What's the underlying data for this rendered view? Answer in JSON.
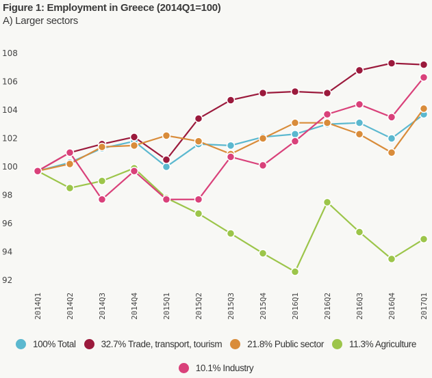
{
  "chart_data": {
    "type": "line",
    "title": "Figure 1: Employment in Greece (2014Q1=100)",
    "subtitle": "A) Larger sectors",
    "xlabel": "",
    "ylabel": "",
    "ylim": [
      92,
      108
    ],
    "yticks": [
      92,
      94,
      96,
      98,
      100,
      102,
      104,
      106,
      108
    ],
    "grid": false,
    "legend_position": "bottom",
    "categories": [
      "2014Q1",
      "2014Q2",
      "2014Q3",
      "2014Q4",
      "2015Q1",
      "2015Q2",
      "2015Q3",
      "2015Q4",
      "2016Q1",
      "2016Q2",
      "2016Q3",
      "2016Q4",
      "2017Q1"
    ],
    "series": [
      {
        "name": "100% Total",
        "color": "#5bb8cf",
        "values": [
          99.7,
          100.3,
          101.3,
          101.8,
          100.0,
          101.6,
          101.5,
          102.1,
          102.3,
          103.0,
          103.1,
          102.0,
          103.7
        ]
      },
      {
        "name": "32.7% Trade, transport, tourism",
        "color": "#9b1a3c",
        "values": [
          99.7,
          101.0,
          101.6,
          102.1,
          100.5,
          103.4,
          104.7,
          105.2,
          105.3,
          105.2,
          106.8,
          107.3,
          107.2
        ]
      },
      {
        "name": "21.8% Public sector",
        "color": "#d98c3a",
        "values": [
          99.7,
          100.2,
          101.4,
          101.5,
          102.2,
          101.8,
          100.9,
          102.0,
          103.1,
          103.1,
          102.3,
          101.0,
          104.1
        ]
      },
      {
        "name": "11.3% Agriculture",
        "color": "#9cc54a",
        "values": [
          99.7,
          98.5,
          99.0,
          99.9,
          97.8,
          96.7,
          95.3,
          93.9,
          92.6,
          97.5,
          95.4,
          93.5,
          94.9
        ]
      },
      {
        "name": "10.1% Industry",
        "color": "#d9417a",
        "values": [
          99.7,
          101.0,
          97.7,
          99.7,
          97.7,
          97.7,
          100.7,
          100.1,
          101.8,
          103.7,
          104.4,
          103.5,
          106.3
        ]
      }
    ]
  }
}
